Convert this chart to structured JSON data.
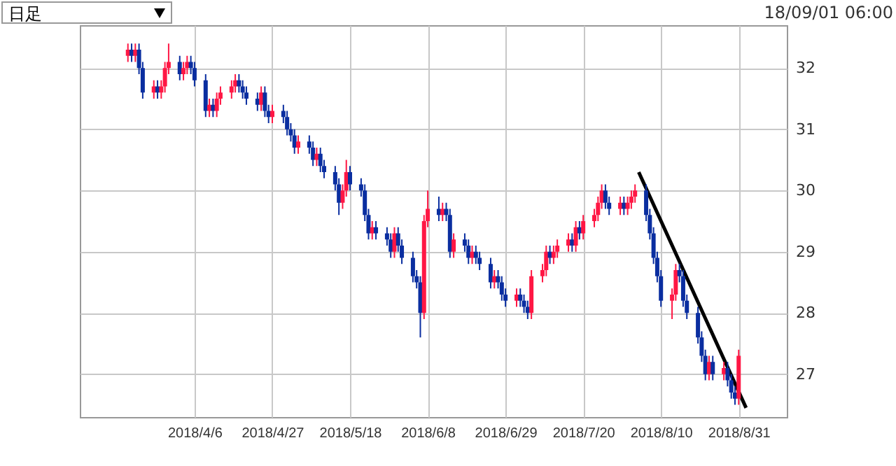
{
  "chart_data": {
    "type": "candlestick",
    "annotations": [
      "日足",
      "18/09/01 06:00"
    ],
    "x": [
      "2018-03-19",
      "2018-03-20",
      "2018-03-21",
      "2018-03-22",
      "2018-03-23",
      "2018-03-26",
      "2018-03-27",
      "2018-03-28",
      "2018-03-29",
      "2018-03-30",
      "2018-04-02",
      "2018-04-03",
      "2018-04-04",
      "2018-04-05",
      "2018-04-06",
      "2018-04-09",
      "2018-04-10",
      "2018-04-11",
      "2018-04-12",
      "2018-04-13",
      "2018-04-16",
      "2018-04-17",
      "2018-04-18",
      "2018-04-19",
      "2018-04-20",
      "2018-04-23",
      "2018-04-24",
      "2018-04-25",
      "2018-04-26",
      "2018-04-27",
      "2018-04-30",
      "2018-05-01",
      "2018-05-02",
      "2018-05-03",
      "2018-05-04",
      "2018-05-07",
      "2018-05-08",
      "2018-05-09",
      "2018-05-10",
      "2018-05-11",
      "2018-05-14",
      "2018-05-15",
      "2018-05-16",
      "2018-05-17",
      "2018-05-18",
      "2018-05-21",
      "2018-05-22",
      "2018-05-23",
      "2018-05-24",
      "2018-05-25",
      "2018-05-28",
      "2018-05-29",
      "2018-05-30",
      "2018-05-31",
      "2018-06-01",
      "2018-06-04",
      "2018-06-05",
      "2018-06-06",
      "2018-06-07",
      "2018-06-08",
      "2018-06-11",
      "2018-06-12",
      "2018-06-13",
      "2018-06-14",
      "2018-06-15",
      "2018-06-18",
      "2018-06-19",
      "2018-06-20",
      "2018-06-21",
      "2018-06-22",
      "2018-06-25",
      "2018-06-26",
      "2018-06-27",
      "2018-06-28",
      "2018-06-29",
      "2018-07-02",
      "2018-07-03",
      "2018-07-04",
      "2018-07-05",
      "2018-07-06",
      "2018-07-09",
      "2018-07-10",
      "2018-07-11",
      "2018-07-12",
      "2018-07-13",
      "2018-07-16",
      "2018-07-17",
      "2018-07-18",
      "2018-07-19",
      "2018-07-20",
      "2018-07-23",
      "2018-07-24",
      "2018-07-25",
      "2018-07-26",
      "2018-07-27",
      "2018-07-30",
      "2018-07-31",
      "2018-08-01",
      "2018-08-02",
      "2018-08-03",
      "2018-08-06",
      "2018-08-07",
      "2018-08-08",
      "2018-08-09",
      "2018-08-10",
      "2018-08-13",
      "2018-08-14",
      "2018-08-15",
      "2018-08-16",
      "2018-08-17",
      "2018-08-20",
      "2018-08-21",
      "2018-08-22",
      "2018-08-23",
      "2018-08-24",
      "2018-08-27",
      "2018-08-28",
      "2018-08-29",
      "2018-08-30",
      "2018-08-31"
    ],
    "ohlc": [
      [
        32.2,
        32.4,
        32.1,
        32.3
      ],
      [
        32.3,
        32.4,
        32.1,
        32.2
      ],
      [
        32.2,
        32.4,
        32.1,
        32.3
      ],
      [
        32.3,
        32.4,
        31.9,
        32.0
      ],
      [
        32.0,
        32.1,
        31.5,
        31.6
      ],
      [
        31.6,
        31.8,
        31.5,
        31.7
      ],
      [
        31.7,
        31.8,
        31.5,
        31.6
      ],
      [
        31.6,
        31.8,
        31.5,
        31.7
      ],
      [
        31.7,
        32.1,
        31.6,
        32.0
      ],
      [
        32.0,
        32.4,
        31.9,
        32.1
      ],
      [
        32.1,
        32.2,
        31.8,
        31.9
      ],
      [
        31.9,
        32.1,
        31.8,
        32.0
      ],
      [
        32.0,
        32.2,
        31.9,
        32.1
      ],
      [
        32.1,
        32.2,
        31.9,
        32.0
      ],
      [
        32.0,
        32.1,
        31.7,
        31.8
      ],
      [
        31.8,
        31.9,
        31.2,
        31.3
      ],
      [
        31.3,
        31.5,
        31.2,
        31.4
      ],
      [
        31.4,
        31.5,
        31.2,
        31.3
      ],
      [
        31.3,
        31.6,
        31.2,
        31.5
      ],
      [
        31.5,
        31.7,
        31.4,
        31.6
      ],
      [
        31.6,
        31.8,
        31.5,
        31.7
      ],
      [
        31.7,
        31.9,
        31.6,
        31.8
      ],
      [
        31.8,
        31.9,
        31.6,
        31.7
      ],
      [
        31.7,
        31.8,
        31.5,
        31.6
      ],
      [
        31.6,
        31.7,
        31.4,
        31.5
      ],
      [
        31.5,
        31.6,
        31.3,
        31.4
      ],
      [
        31.4,
        31.7,
        31.3,
        31.6
      ],
      [
        31.6,
        31.7,
        31.2,
        31.3
      ],
      [
        31.3,
        31.4,
        31.1,
        31.2
      ],
      [
        31.2,
        31.4,
        31.1,
        31.3
      ],
      [
        31.3,
        31.4,
        31.1,
        31.2
      ],
      [
        31.2,
        31.3,
        30.9,
        31.0
      ],
      [
        31.0,
        31.1,
        30.8,
        30.9
      ],
      [
        30.9,
        31.0,
        30.6,
        30.7
      ],
      [
        30.7,
        30.9,
        30.6,
        30.8
      ],
      [
        30.8,
        30.9,
        30.6,
        30.7
      ],
      [
        30.7,
        30.8,
        30.4,
        30.5
      ],
      [
        30.5,
        30.7,
        30.4,
        30.6
      ],
      [
        30.6,
        30.7,
        30.3,
        30.4
      ],
      [
        30.4,
        30.5,
        30.2,
        30.3
      ],
      [
        30.3,
        30.4,
        30.0,
        30.1
      ],
      [
        30.1,
        30.2,
        29.6,
        29.8
      ],
      [
        29.8,
        30.1,
        29.7,
        30.0
      ],
      [
        30.0,
        30.5,
        29.9,
        30.3
      ],
      [
        30.3,
        30.4,
        30.0,
        30.1
      ],
      [
        30.1,
        30.2,
        29.9,
        30.0
      ],
      [
        30.0,
        30.1,
        29.5,
        29.6
      ],
      [
        29.6,
        29.7,
        29.2,
        29.3
      ],
      [
        29.3,
        29.5,
        29.2,
        29.4
      ],
      [
        29.4,
        29.5,
        29.2,
        29.3
      ],
      [
        29.3,
        29.4,
        29.1,
        29.2
      ],
      [
        29.2,
        29.3,
        28.9,
        29.0
      ],
      [
        29.0,
        29.4,
        28.9,
        29.3
      ],
      [
        29.3,
        29.4,
        29.0,
        29.1
      ],
      [
        29.1,
        29.2,
        28.8,
        28.9
      ],
      [
        28.9,
        29.0,
        28.5,
        28.6
      ],
      [
        28.6,
        28.7,
        28.4,
        28.5
      ],
      [
        28.5,
        28.6,
        27.6,
        28.0
      ],
      [
        28.0,
        29.6,
        27.9,
        29.5
      ],
      [
        29.5,
        30.0,
        29.4,
        29.7
      ],
      [
        29.7,
        29.9,
        29.5,
        29.6
      ],
      [
        29.6,
        29.8,
        29.5,
        29.7
      ],
      [
        29.7,
        29.8,
        29.5,
        29.6
      ],
      [
        29.6,
        29.7,
        28.9,
        29.0
      ],
      [
        29.0,
        29.3,
        28.9,
        29.2
      ],
      [
        29.2,
        29.3,
        29.0,
        29.1
      ],
      [
        29.1,
        29.2,
        28.8,
        28.9
      ],
      [
        28.9,
        29.1,
        28.8,
        29.0
      ],
      [
        29.0,
        29.1,
        28.8,
        28.9
      ],
      [
        28.9,
        29.0,
        28.7,
        28.8
      ],
      [
        28.8,
        28.9,
        28.4,
        28.5
      ],
      [
        28.5,
        28.7,
        28.4,
        28.6
      ],
      [
        28.6,
        28.7,
        28.4,
        28.5
      ],
      [
        28.5,
        28.6,
        28.2,
        28.3
      ],
      [
        28.3,
        28.4,
        28.1,
        28.2
      ],
      [
        28.2,
        28.4,
        28.1,
        28.3
      ],
      [
        28.3,
        28.4,
        28.1,
        28.2
      ],
      [
        28.2,
        28.3,
        28.0,
        28.1
      ],
      [
        28.1,
        28.2,
        27.9,
        28.0
      ],
      [
        28.0,
        28.7,
        27.9,
        28.6
      ],
      [
        28.6,
        28.8,
        28.5,
        28.7
      ],
      [
        28.7,
        29.1,
        28.6,
        29.0
      ],
      [
        29.0,
        29.1,
        28.8,
        28.9
      ],
      [
        28.9,
        29.1,
        28.8,
        29.0
      ],
      [
        29.0,
        29.2,
        28.9,
        29.1
      ],
      [
        29.1,
        29.3,
        29.0,
        29.2
      ],
      [
        29.2,
        29.3,
        29.0,
        29.1
      ],
      [
        29.1,
        29.5,
        29.0,
        29.4
      ],
      [
        29.4,
        29.5,
        29.2,
        29.3
      ],
      [
        29.3,
        29.6,
        29.2,
        29.5
      ],
      [
        29.5,
        29.7,
        29.4,
        29.6
      ],
      [
        29.6,
        29.9,
        29.5,
        29.8
      ],
      [
        29.8,
        30.1,
        29.7,
        30.0
      ],
      [
        30.0,
        30.1,
        29.7,
        29.8
      ],
      [
        29.8,
        29.9,
        29.6,
        29.7
      ],
      [
        29.7,
        29.9,
        29.6,
        29.8
      ],
      [
        29.8,
        29.9,
        29.6,
        29.7
      ],
      [
        29.7,
        29.9,
        29.6,
        29.8
      ],
      [
        29.8,
        30.0,
        29.7,
        29.9
      ],
      [
        29.9,
        30.1,
        29.8,
        30.0
      ],
      [
        30.0,
        30.1,
        29.5,
        29.6
      ],
      [
        29.6,
        29.7,
        29.2,
        29.3
      ],
      [
        29.3,
        29.4,
        28.8,
        28.9
      ],
      [
        28.9,
        29.0,
        28.5,
        28.6
      ],
      [
        28.6,
        28.7,
        28.1,
        28.2
      ],
      [
        28.2,
        28.4,
        27.9,
        28.3
      ],
      [
        28.3,
        28.8,
        28.2,
        28.7
      ],
      [
        28.7,
        28.8,
        28.5,
        28.6
      ],
      [
        28.6,
        28.7,
        28.1,
        28.2
      ],
      [
        28.2,
        28.3,
        27.9,
        28.0
      ],
      [
        28.0,
        28.1,
        27.5,
        27.6
      ],
      [
        27.6,
        27.7,
        27.2,
        27.3
      ],
      [
        27.3,
        27.4,
        26.9,
        27.0
      ],
      [
        27.0,
        27.3,
        26.9,
        27.2
      ],
      [
        27.2,
        27.3,
        26.9,
        27.0
      ],
      [
        27.0,
        27.2,
        26.9,
        27.1
      ],
      [
        27.1,
        27.2,
        26.8,
        26.9
      ],
      [
        26.9,
        27.0,
        26.6,
        26.7
      ],
      [
        26.7,
        26.8,
        26.5,
        26.6
      ],
      [
        26.6,
        27.4,
        26.5,
        27.3
      ]
    ],
    "colors": [
      "#ff1744",
      "#0a2ea0",
      "#ff1744",
      "#0a2ea0",
      "#0a2ea0",
      "#ff1744",
      "#0a2ea0",
      "#ff1744",
      "#ff1744",
      "#ff1744",
      "#0a2ea0",
      "#ff1744",
      "#ff1744",
      "#0a2ea0",
      "#0a2ea0",
      "#0a2ea0",
      "#ff1744",
      "#0a2ea0",
      "#ff1744",
      "#ff1744",
      "#ff1744",
      "#ff1744",
      "#0a2ea0",
      "#0a2ea0",
      "#0a2ea0",
      "#0a2ea0",
      "#ff1744",
      "#0a2ea0",
      "#0a2ea0",
      "#ff1744",
      "#0a2ea0",
      "#0a2ea0",
      "#0a2ea0",
      "#0a2ea0",
      "#ff1744",
      "#0a2ea0",
      "#0a2ea0",
      "#ff1744",
      "#0a2ea0",
      "#0a2ea0",
      "#0a2ea0",
      "#0a2ea0",
      "#ff1744",
      "#ff1744",
      "#0a2ea0",
      "#0a2ea0",
      "#0a2ea0",
      "#0a2ea0",
      "#ff1744",
      "#0a2ea0",
      "#0a2ea0",
      "#0a2ea0",
      "#ff1744",
      "#0a2ea0",
      "#0a2ea0",
      "#0a2ea0",
      "#0a2ea0",
      "#0a2ea0",
      "#ff1744",
      "#ff1744",
      "#0a2ea0",
      "#ff1744",
      "#0a2ea0",
      "#0a2ea0",
      "#ff1744",
      "#0a2ea0",
      "#0a2ea0",
      "#ff1744",
      "#0a2ea0",
      "#0a2ea0",
      "#0a2ea0",
      "#ff1744",
      "#0a2ea0",
      "#0a2ea0",
      "#0a2ea0",
      "#ff1744",
      "#0a2ea0",
      "#0a2ea0",
      "#0a2ea0",
      "#ff1744",
      "#ff1744",
      "#ff1744",
      "#0a2ea0",
      "#ff1744",
      "#ff1744",
      "#ff1744",
      "#0a2ea0",
      "#ff1744",
      "#0a2ea0",
      "#ff1744",
      "#ff1744",
      "#ff1744",
      "#ff1744",
      "#0a2ea0",
      "#0a2ea0",
      "#ff1744",
      "#0a2ea0",
      "#ff1744",
      "#ff1744",
      "#ff1744",
      "#0a2ea0",
      "#0a2ea0",
      "#0a2ea0",
      "#0a2ea0",
      "#0a2ea0",
      "#ff1744",
      "#ff1744",
      "#0a2ea0",
      "#0a2ea0",
      "#0a2ea0",
      "#0a2ea0",
      "#0a2ea0",
      "#0a2ea0",
      "#ff1744",
      "#0a2ea0",
      "#ff1744",
      "#0a2ea0",
      "#0a2ea0",
      "#0a2ea0",
      "#ff1744"
    ],
    "series": [
      {
        "type": "line",
        "x": [
          "2018-08-04",
          "2018-09-02"
        ],
        "values": [
          30.3,
          26.45
        ],
        "color": "#000000"
      }
    ],
    "xlim": [
      "2018-03-06",
      "2018-09-13"
    ],
    "xticks": [
      {
        "value": "2018-04-06",
        "label": "2018/4/6"
      },
      {
        "value": "2018-04-27",
        "label": "2018/4/27"
      },
      {
        "value": "2018-05-18",
        "label": "2018/5/18"
      },
      {
        "value": "2018-06-08",
        "label": "2018/6/8"
      },
      {
        "value": "2018-06-29",
        "label": "2018/6/29"
      },
      {
        "value": "2018-07-20",
        "label": "2018/7/20"
      },
      {
        "value": "2018-08-10",
        "label": "2018/8/10"
      },
      {
        "value": "2018-08-31",
        "label": "2018/8/31"
      }
    ],
    "ylim": [
      26.3,
      32.7
    ],
    "yticks": [
      27,
      28,
      29,
      30,
      31,
      32
    ],
    "grid": true,
    "line_style": "solid"
  }
}
